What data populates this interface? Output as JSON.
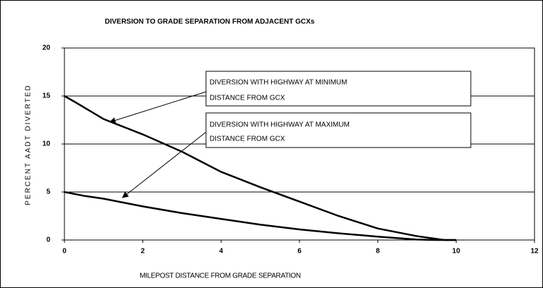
{
  "chart_data": {
    "type": "line",
    "title": "DIVERSION TO GRADE SEPARATION FROM ADJACENT GCXs",
    "xlabel": "MILEPOST DISTANCE FROM GRADE SEPARATION",
    "ylabel": "PERCENT AADT DIVERTED",
    "xlim": [
      0,
      12
    ],
    "xticks": [
      0,
      2,
      4,
      6,
      8,
      10,
      12
    ],
    "ylim": [
      0,
      20
    ],
    "yticks": [
      0,
      5,
      10,
      15,
      20
    ],
    "grid": true,
    "series": [
      {
        "name": "DIVERSION WITH HIGHWAY AT MINIMUM DISTANCE FROM GCX",
        "color": "#000000",
        "x": [
          0,
          0.3,
          1,
          2,
          3,
          4,
          5,
          6,
          7,
          8,
          9,
          9.7,
          10
        ],
        "values": [
          15,
          14.3,
          12.6,
          11,
          9.2,
          7.1,
          5.5,
          4,
          2.5,
          1.2,
          0.4,
          0,
          0
        ]
      },
      {
        "name": "DIVERSION WITH HIGHWAY AT MAXIMUM DISTANCE FROM GCX",
        "color": "#000000",
        "x": [
          0,
          0.5,
          1,
          2,
          3,
          4,
          5,
          6,
          7,
          8,
          9,
          9.5,
          10
        ],
        "values": [
          5,
          4.6,
          4.3,
          3.5,
          2.8,
          2.2,
          1.6,
          1.1,
          0.7,
          0.35,
          0.05,
          0,
          0
        ]
      }
    ],
    "annotations": [
      {
        "lines": [
          "DIVERSION WITH HIGHWAY AT MINIMUM",
          "DISTANCE FROM GCX"
        ]
      },
      {
        "lines": [
          "DIVERSION WITH HIGHWAY AT MAXIMUM",
          "DISTANCE FROM GCX"
        ]
      }
    ]
  }
}
